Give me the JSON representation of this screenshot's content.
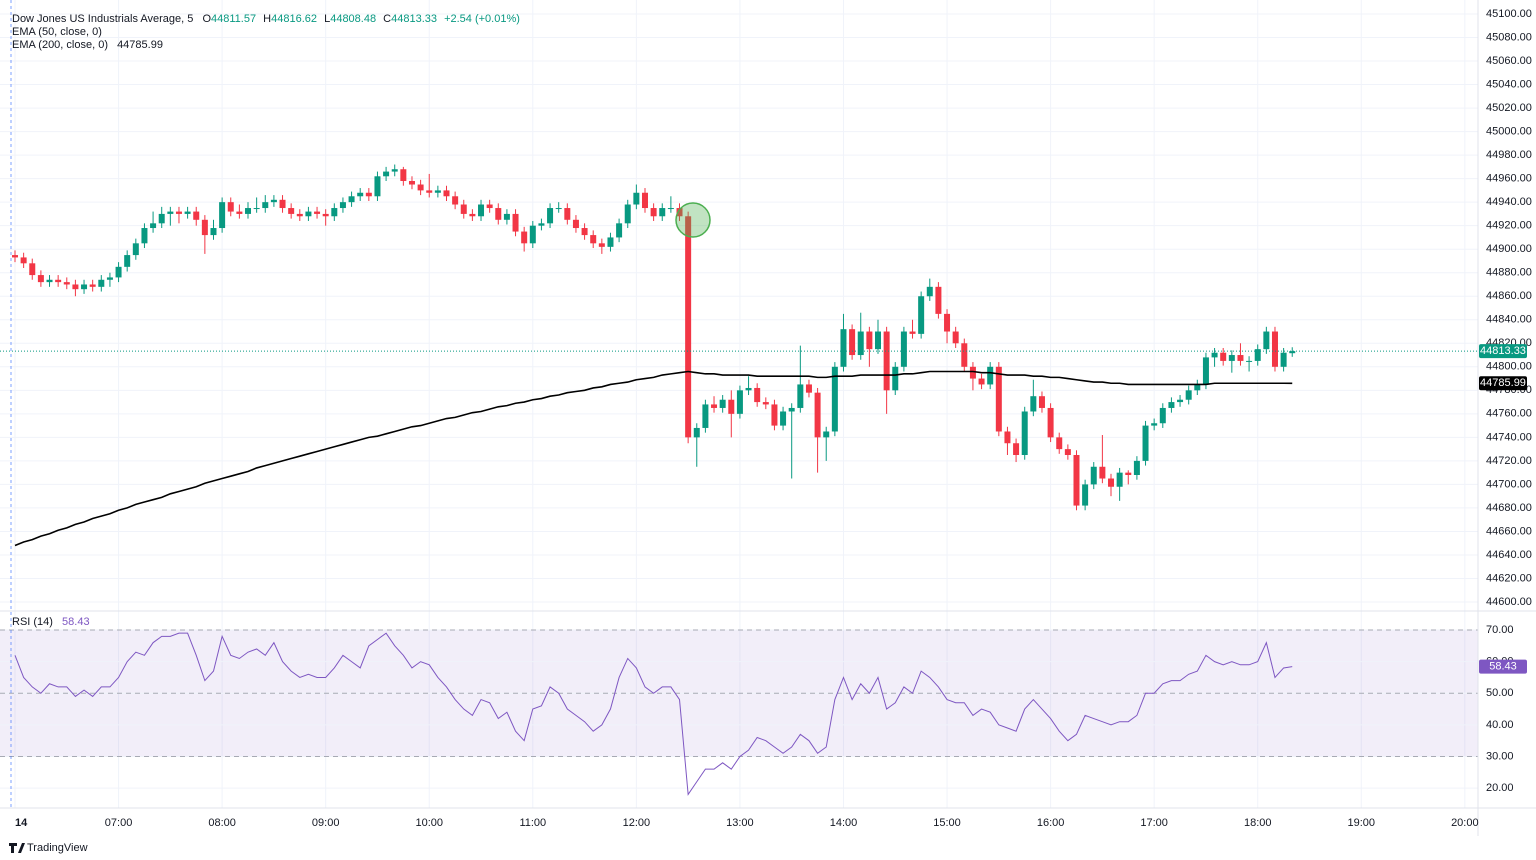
{
  "header": {
    "title": "Dow Jones US Industrials Average, 5",
    "ohlc_labels": [
      "O",
      "H",
      "L",
      "C"
    ],
    "change": "+2.54 (+0.01%)",
    "ema50_label": "EMA (50, close, 0)"
  },
  "footer": {
    "brand": "TradingView"
  },
  "chart_data": {
    "type": "candlestick",
    "up_color": "#089981",
    "down_color": "#f23645",
    "ylim": [
      44593.2,
      45111.9
    ],
    "yticks": [
      {
        "value": 45100,
        "label": "45100.00"
      },
      {
        "value": 45080,
        "label": "45080.00"
      },
      {
        "value": 45060,
        "label": "45060.00"
      },
      {
        "value": 45040,
        "label": "45040.00"
      },
      {
        "value": 45020,
        "label": "45020.00"
      },
      {
        "value": 45000,
        "label": "45000.00"
      },
      {
        "value": 44980,
        "label": "44980.00"
      },
      {
        "value": 44960,
        "label": "44960.00"
      },
      {
        "value": 44940,
        "label": "44940.00"
      },
      {
        "value": 44920,
        "label": "44920.00"
      },
      {
        "value": 44900,
        "label": "44900.00"
      },
      {
        "value": 44880,
        "label": "44880.00"
      },
      {
        "value": 44860,
        "label": "44860.00"
      },
      {
        "value": 44840,
        "label": "44840.00"
      },
      {
        "value": 44820,
        "label": "44820.00"
      },
      {
        "value": 44800,
        "label": "44800.00"
      },
      {
        "value": 44780,
        "label": "44780.00"
      },
      {
        "value": 44760,
        "label": "44760.00"
      },
      {
        "value": 44740,
        "label": "44740.00"
      },
      {
        "value": 44720,
        "label": "44720.00"
      },
      {
        "value": 44700,
        "label": "44700.00"
      },
      {
        "value": 44680,
        "label": "44680.00"
      },
      {
        "value": 44660,
        "label": "44660.00"
      },
      {
        "value": 44640,
        "label": "44640.00"
      },
      {
        "value": 44620,
        "label": "44620.00"
      },
      {
        "value": 44600,
        "label": "44600.00"
      }
    ],
    "xtick_labels": [
      "14",
      "07:00",
      "08:00",
      "09:00",
      "10:00",
      "11:00",
      "12:00",
      "13:00",
      "14:00",
      "15:00",
      "16:00",
      "17:00",
      "18:00",
      "19:00",
      "20:00"
    ],
    "open": [
      44895,
      44893,
      44888,
      44878,
      44872,
      44874,
      44872,
      44870,
      44866,
      44870,
      44868,
      44874,
      44876,
      44885,
      44895,
      44905,
      44918,
      44922,
      44930,
      44932,
      44930,
      44932,
      44925,
      44912,
      44918,
      44940,
      44932,
      44930,
      44935,
      44935,
      44940,
      44942,
      44935,
      44930,
      44928,
      44932,
      44930,
      44928,
      44935,
      44940,
      44945,
      44948,
      44945,
      44962,
      44966,
      44968,
      44958,
      44955,
      44950,
      44948,
      44950,
      44945,
      44938,
      44930,
      44928,
      44938,
      44935,
      44925,
      44930,
      44915,
      44905,
      44920,
      44922,
      44935,
      44935,
      44925,
      44918,
      44912,
      44905,
      44902,
      44910,
      44922,
      44938,
      44948,
      44935,
      44928,
      44935,
      44935,
      44928,
      44740,
      44748,
      44768,
      44765,
      44772,
      44760,
      44780,
      44782,
      44770,
      44768,
      44750,
      44762,
      44765,
      44785,
      44778,
      44740,
      44745,
      44800,
      44832,
      44810,
      44830,
      44815,
      44830,
      44780,
      44800,
      44830,
      44828,
      44860,
      44868,
      44845,
      44830,
      44820,
      44800,
      44790,
      44785,
      44800,
      44745,
      44735,
      44725,
      44762,
      44775,
      44765,
      44740,
      44730,
      44725,
      44682,
      44700,
      44715,
      44705,
      44698,
      44710,
      44708,
      44720,
      44750,
      44752,
      44765,
      44770,
      44772,
      44780,
      44785,
      44808,
      44812,
      44805,
      44810,
      44805,
      44805,
      44815,
      44830,
      44800,
      44811.57
    ],
    "high": [
      44899,
      44897,
      44892,
      44882,
      44878,
      44878,
      44876,
      44874,
      44874,
      44874,
      44878,
      44880,
      44889,
      44899,
      44909,
      44922,
      44932,
      44936,
      44936,
      44936,
      44936,
      44936,
      44929,
      44925,
      44944,
      44944,
      44938,
      44940,
      44944,
      44946,
      44946,
      44946,
      44939,
      44934,
      44936,
      44936,
      44934,
      44939,
      44944,
      44949,
      44952,
      44952,
      44966,
      44970,
      44972,
      44970,
      44962,
      44959,
      44964,
      44954,
      44954,
      44949,
      44942,
      44934,
      44942,
      44942,
      44939,
      44934,
      44934,
      44919,
      44924,
      44926,
      44939,
      44940,
      44939,
      44929,
      44922,
      44916,
      44909,
      44914,
      44926,
      44942,
      44955,
      44952,
      44939,
      44939,
      44945,
      44939,
      44932,
      44752,
      44772,
      44775,
      44776,
      44780,
      44784,
      44792,
      44786,
      44774,
      44772,
      44766,
      44769,
      44818,
      44789,
      44782,
      44749,
      44804,
      44845,
      44836,
      44846,
      44834,
      44840,
      44834,
      44804,
      44834,
      44840,
      44864,
      44875,
      44872,
      44849,
      44834,
      44824,
      44804,
      44794,
      44804,
      44804,
      44749,
      44739,
      44766,
      44789,
      44779,
      44769,
      44744,
      44734,
      44729,
      44704,
      44719,
      44742,
      44709,
      44714,
      44712,
      44724,
      44754,
      44756,
      44769,
      44774,
      44776,
      44784,
      44789,
      44812,
      44816,
      44816,
      44814,
      44820,
      44809,
      44819,
      44834,
      44834,
      44816,
      44816.62
    ],
    "low": [
      44889,
      44884,
      44874,
      44868,
      44868,
      44868,
      44866,
      44860,
      44862,
      44864,
      44864,
      44868,
      44872,
      44881,
      44891,
      44901,
      44914,
      44918,
      44920,
      44922,
      44926,
      44920,
      44896,
      44908,
      44914,
      44928,
      44926,
      44926,
      44931,
      44931,
      44936,
      44931,
      44926,
      44924,
      44924,
      44926,
      44920,
      44924,
      44931,
      44936,
      44941,
      44941,
      44941,
      44958,
      44962,
      44954,
      44951,
      44946,
      44944,
      44944,
      44941,
      44934,
      44926,
      44924,
      44924,
      44931,
      44921,
      44921,
      44911,
      44898,
      44901,
      44916,
      44918,
      44931,
      44921,
      44914,
      44908,
      44901,
      44896,
      44898,
      44906,
      44918,
      44934,
      44931,
      44924,
      44924,
      44931,
      44924,
      44735,
      44715,
      44744,
      44761,
      44761,
      44740,
      44756,
      44776,
      44766,
      44764,
      44746,
      44746,
      44705,
      44761,
      44774,
      44710,
      44720,
      44741,
      44796,
      44806,
      44806,
      44800,
      44811,
      44760,
      44776,
      44796,
      44824,
      44824,
      44856,
      44841,
      44820,
      44816,
      44796,
      44780,
      44781,
      44781,
      44741,
      44725,
      44719,
      44721,
      44758,
      44761,
      44736,
      44726,
      44721,
      44678,
      44678,
      44696,
      44701,
      44690,
      44686,
      44700,
      44704,
      44716,
      44746,
      44748,
      44761,
      44766,
      44768,
      44776,
      44781,
      44800,
      44801,
      44795,
      44801,
      44796,
      44801,
      44811,
      44796,
      44796,
      44808.48
    ],
    "close": [
      44893,
      44888,
      44878,
      44872,
      44874,
      44872,
      44870,
      44866,
      44870,
      44868,
      44874,
      44876,
      44885,
      44895,
      44905,
      44918,
      44922,
      44930,
      44932,
      44930,
      44932,
      44925,
      44912,
      44918,
      44940,
      44932,
      44930,
      44935,
      44935,
      44940,
      44942,
      44935,
      44930,
      44928,
      44932,
      44930,
      44928,
      44935,
      44940,
      44945,
      44948,
      44945,
      44962,
      44966,
      44968,
      44958,
      44955,
      44950,
      44948,
      44950,
      44945,
      44938,
      44930,
      44928,
      44938,
      44935,
      44925,
      44930,
      44915,
      44905,
      44920,
      44922,
      44935,
      44935,
      44925,
      44918,
      44912,
      44905,
      44902,
      44910,
      44922,
      44938,
      44948,
      44935,
      44928,
      44935,
      44935,
      44928,
      44740,
      44748,
      44768,
      44765,
      44772,
      44760,
      44780,
      44782,
      44770,
      44768,
      44750,
      44762,
      44765,
      44785,
      44778,
      44740,
      44745,
      44800,
      44832,
      44810,
      44830,
      44815,
      44830,
      44780,
      44800,
      44830,
      44828,
      44860,
      44868,
      44845,
      44830,
      44820,
      44800,
      44790,
      44785,
      44800,
      44745,
      44735,
      44725,
      44762,
      44775,
      44765,
      44740,
      44730,
      44725,
      44682,
      44700,
      44715,
      44705,
      44698,
      44710,
      44708,
      44720,
      44750,
      44752,
      44765,
      44770,
      44772,
      44780,
      44785,
      44808,
      44812,
      44805,
      44810,
      44805,
      44805,
      44815,
      44830,
      44800,
      44812,
      44813.33
    ],
    "series": [
      {
        "name": "EMA (200, close, 0)",
        "color": "#000000",
        "values": [
          44648,
          44651,
          44653,
          44656,
          44658,
          44661,
          44663,
          44666,
          44668,
          44671,
          44673,
          44675,
          44678,
          44680,
          44683,
          44685,
          44687,
          44689,
          44692,
          44694,
          44696,
          44698,
          44701,
          44703,
          44705,
          44707,
          44709,
          44711,
          44714,
          44716,
          44718,
          44720,
          44722,
          44724,
          44726,
          44728,
          44730,
          44732,
          44734,
          44736,
          44738,
          44740,
          44741,
          44743,
          44745,
          44747,
          44749,
          44750,
          44752,
          44754,
          44756,
          44757,
          44759,
          44761,
          44762,
          44764,
          44766,
          44767,
          44769,
          44770,
          44772,
          44773,
          44775,
          44776,
          44778,
          44779,
          44780,
          44782,
          44783,
          44785,
          44786,
          44787,
          44789,
          44790,
          44791,
          44793,
          44794,
          44795,
          44796,
          44795,
          44794,
          44794,
          44793,
          44793,
          44793,
          44793,
          44792,
          44792,
          44792,
          44792,
          44792,
          44792,
          44792,
          44791,
          44791,
          44792,
          44792,
          44792,
          44793,
          44793,
          44793,
          44793,
          44793,
          44794,
          44794,
          44795,
          44796,
          44796,
          44796,
          44796,
          44796,
          44796,
          44795,
          44795,
          44794,
          44793,
          44793,
          44793,
          44792,
          44792,
          44791,
          44791,
          44790,
          44789,
          44788,
          44787,
          44787,
          44786,
          44786,
          44785,
          44785,
          44785,
          44785,
          44785,
          44785,
          44785,
          44785,
          44785,
          44785,
          44786,
          44786,
          44786,
          44786,
          44786,
          44786,
          44786,
          44786,
          44786,
          44785.99
        ]
      }
    ],
    "rsi": {
      "name": "RSI (14)",
      "color": "#7e57c2",
      "ylim": [
        13.7,
        75.7
      ],
      "yticks": [
        {
          "value": 70,
          "label": "70.00"
        },
        {
          "value": 60,
          "label": "60.00"
        },
        {
          "value": 50,
          "label": "50.00"
        },
        {
          "value": 40,
          "label": "40.00"
        },
        {
          "value": 30,
          "label": "30.00"
        },
        {
          "value": 20,
          "label": "20.00"
        }
      ],
      "levels": [
        70,
        50,
        30
      ],
      "values": [
        62,
        55,
        52,
        50,
        53,
        52,
        52,
        49,
        51,
        49,
        52,
        52,
        55,
        60,
        63,
        62,
        66,
        68,
        68,
        69,
        69,
        62,
        54,
        57,
        68,
        62,
        61,
        63,
        64,
        62,
        66,
        60,
        57,
        55,
        56,
        55,
        55,
        58,
        62,
        60,
        58,
        65,
        67,
        69,
        65,
        62,
        58,
        60,
        59,
        55,
        52,
        48,
        45,
        43,
        48,
        47,
        42,
        44,
        38,
        35,
        45,
        46,
        52,
        50,
        45,
        43,
        41,
        38,
        40,
        45,
        55,
        61,
        58,
        52,
        50,
        52,
        52,
        48,
        18,
        22,
        26,
        26,
        28,
        26,
        30,
        32,
        36,
        35,
        33,
        31,
        33,
        37,
        35,
        31,
        33,
        48,
        55,
        48,
        53,
        50,
        55,
        45,
        47,
        52,
        50,
        57,
        55,
        52,
        48,
        47,
        47,
        43,
        45,
        44,
        40,
        39,
        38,
        45,
        48,
        45,
        42,
        38,
        35,
        37,
        43,
        42,
        41,
        40,
        41,
        41,
        43,
        50,
        50,
        53,
        54,
        54,
        56,
        57,
        62,
        60,
        59,
        60,
        59,
        59,
        60,
        66,
        55,
        58,
        58.43
      ]
    }
  }
}
